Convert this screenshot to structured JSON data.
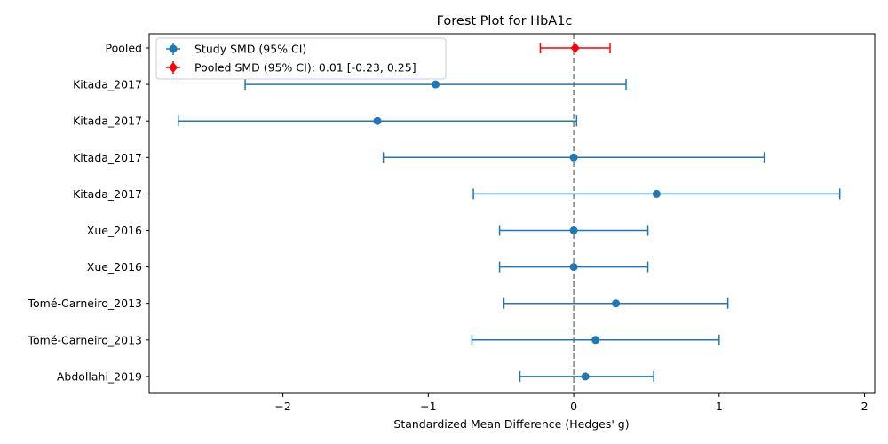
{
  "chart_data": {
    "type": "scatter",
    "title": "Forest Plot for HbA1c",
    "xlabel": "Standardized Mean Difference (Hedges' g)",
    "ylabel": "",
    "xlim": [
      -2.92,
      2.07
    ],
    "xticks": [
      -2,
      -1,
      0,
      1,
      2
    ],
    "xtick_labels": [
      "−2",
      "−1",
      "0",
      "1",
      "2"
    ],
    "reference_line": 0,
    "grid": false,
    "legend_position": "top-left",
    "legend": [
      {
        "label": "Study SMD (95% CI)",
        "marker": "circle",
        "color": "#1f77b4"
      },
      {
        "label": "Pooled SMD (95% CI): 0.01 [-0.23, 0.25]",
        "marker": "diamond",
        "color": "#ff0000"
      }
    ],
    "series": [
      {
        "name": "Study SMD (95% CI)",
        "color": "#1f77b4",
        "points": [
          {
            "label": "Kitada_2017",
            "estimate": -0.95,
            "lower": -2.26,
            "upper": 0.36
          },
          {
            "label": "Kitada_2017",
            "estimate": -1.35,
            "lower": -2.72,
            "upper": 0.02
          },
          {
            "label": "Kitada_2017",
            "estimate": 0.0,
            "lower": -1.31,
            "upper": 1.31
          },
          {
            "label": "Kitada_2017",
            "estimate": 0.57,
            "lower": -0.69,
            "upper": 1.83
          },
          {
            "label": "Xue_2016",
            "estimate": 0.0,
            "lower": -0.51,
            "upper": 0.51
          },
          {
            "label": "Xue_2016",
            "estimate": 0.0,
            "lower": -0.51,
            "upper": 0.51
          },
          {
            "label": "Tomé-Carneiro_2013",
            "estimate": 0.29,
            "lower": -0.48,
            "upper": 1.06
          },
          {
            "label": "Tomé-Carneiro_2013",
            "estimate": 0.15,
            "lower": -0.7,
            "upper": 1.0
          },
          {
            "label": "Abdollahi_2019",
            "estimate": 0.08,
            "lower": -0.37,
            "upper": 0.55
          }
        ]
      },
      {
        "name": "Pooled SMD (95% CI): 0.01 [-0.23, 0.25]",
        "color": "#ff0000",
        "points": [
          {
            "label": "Pooled",
            "estimate": 0.01,
            "lower": -0.23,
            "upper": 0.25
          }
        ]
      }
    ],
    "categories": [
      "Pooled",
      "Kitada_2017",
      "Kitada_2017",
      "Kitada_2017",
      "Kitada_2017",
      "Xue_2016",
      "Xue_2016",
      "Tomé-Carneiro_2013",
      "Tomé-Carneiro_2013",
      "Abdollahi_2019"
    ]
  }
}
